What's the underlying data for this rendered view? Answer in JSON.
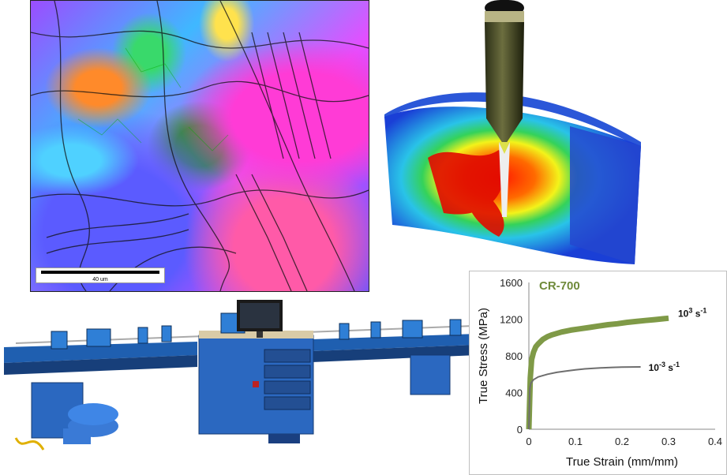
{
  "micrograph": {
    "scale_bar_label": "40 um"
  },
  "chart_data": {
    "type": "line",
    "title": "CR-700",
    "xlabel": "True Strain  (mm/mm)",
    "ylabel": "True Stress  (MPa)",
    "xlim": [
      0,
      0.4
    ],
    "ylim": [
      0,
      1600
    ],
    "x_ticks": [
      "0",
      "0.1",
      "0.2",
      "0.3",
      "0.4"
    ],
    "y_ticks": [
      "0",
      "400",
      "800",
      "1200",
      "1600"
    ],
    "grid": false,
    "colors": {
      "high_rate": "#7f9a47",
      "low_rate": "#6e6e6e",
      "title": "#6f8a3a"
    },
    "series": [
      {
        "name": "high_rate",
        "label_base": "10",
        "label_exp": "3",
        "label_unit": "s",
        "label_unit_exp": "-1",
        "x": [
          0,
          0.003,
          0.006,
          0.01,
          0.015,
          0.02,
          0.03,
          0.04,
          0.05,
          0.07,
          0.09,
          0.11,
          0.13,
          0.15,
          0.17,
          0.19,
          0.21,
          0.23,
          0.25,
          0.27,
          0.29,
          0.3
        ],
        "values": [
          0,
          560,
          760,
          840,
          900,
          930,
          980,
          1010,
          1030,
          1060,
          1080,
          1095,
          1110,
          1125,
          1140,
          1150,
          1165,
          1175,
          1185,
          1195,
          1205,
          1210
        ]
      },
      {
        "name": "low_rate",
        "label_base": "10",
        "label_exp": "-3",
        "label_unit": "s",
        "label_unit_exp": "-1",
        "x": [
          0,
          0.002,
          0.004,
          0.01,
          0.02,
          0.04,
          0.06,
          0.08,
          0.1,
          0.12,
          0.14,
          0.16,
          0.18,
          0.2,
          0.22,
          0.24
        ],
        "values": [
          0,
          440,
          500,
          540,
          570,
          600,
          620,
          635,
          648,
          658,
          665,
          670,
          674,
          677,
          679,
          680
        ]
      }
    ]
  }
}
